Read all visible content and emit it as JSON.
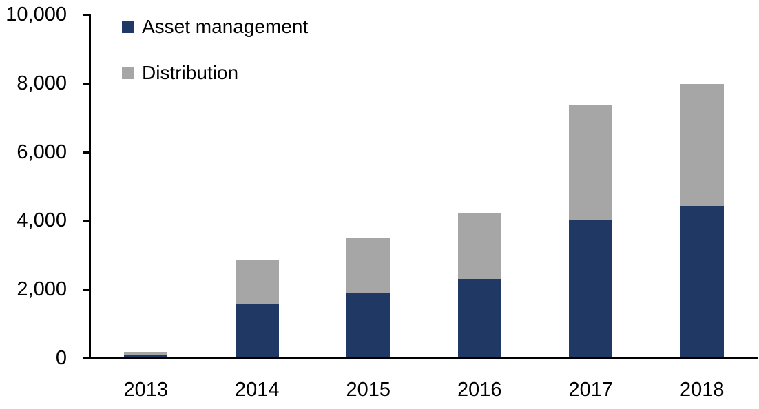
{
  "chart_data": {
    "type": "bar",
    "stacked": true,
    "title": "",
    "xlabel": "",
    "ylabel": "",
    "categories": [
      "2013",
      "2014",
      "2015",
      "2016",
      "2017",
      "2018"
    ],
    "series": [
      {
        "name": "Asset management",
        "color": "#1F3864",
        "values": [
          100,
          1560,
          1900,
          2310,
          4030,
          4430
        ]
      },
      {
        "name": "Distribution",
        "color": "#A6A6A6",
        "values": [
          100,
          1320,
          1600,
          1940,
          3360,
          3570
        ]
      }
    ],
    "totals": [
      200,
      2880,
      3500,
      4250,
      7390,
      8000
    ],
    "ylim": [
      0,
      10000
    ],
    "yticks": [
      0,
      2000,
      4000,
      6000,
      8000,
      10000
    ],
    "ytick_labels": [
      "0",
      "2,000",
      "4,000",
      "6,000",
      "8,000",
      "10,000"
    ],
    "grid": false,
    "legend_position": "top-left-inside",
    "axis_color": "#000000"
  }
}
